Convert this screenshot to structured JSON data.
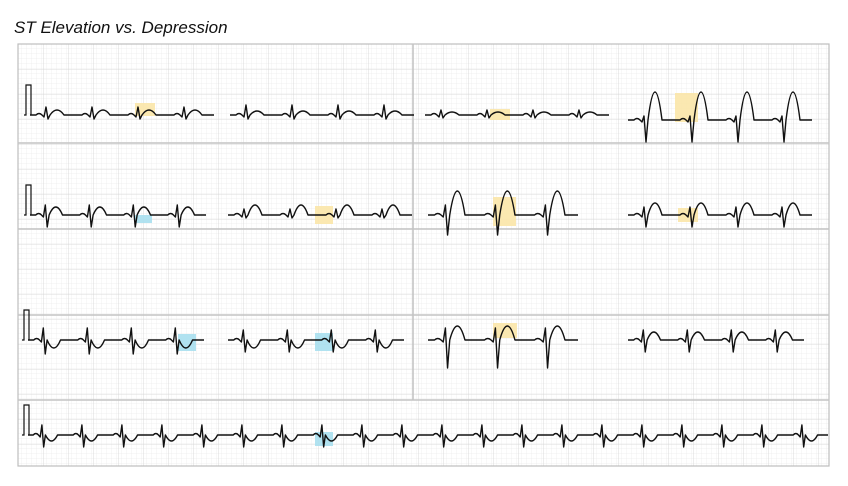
{
  "title": "ST Elevation vs. Depression"
}
